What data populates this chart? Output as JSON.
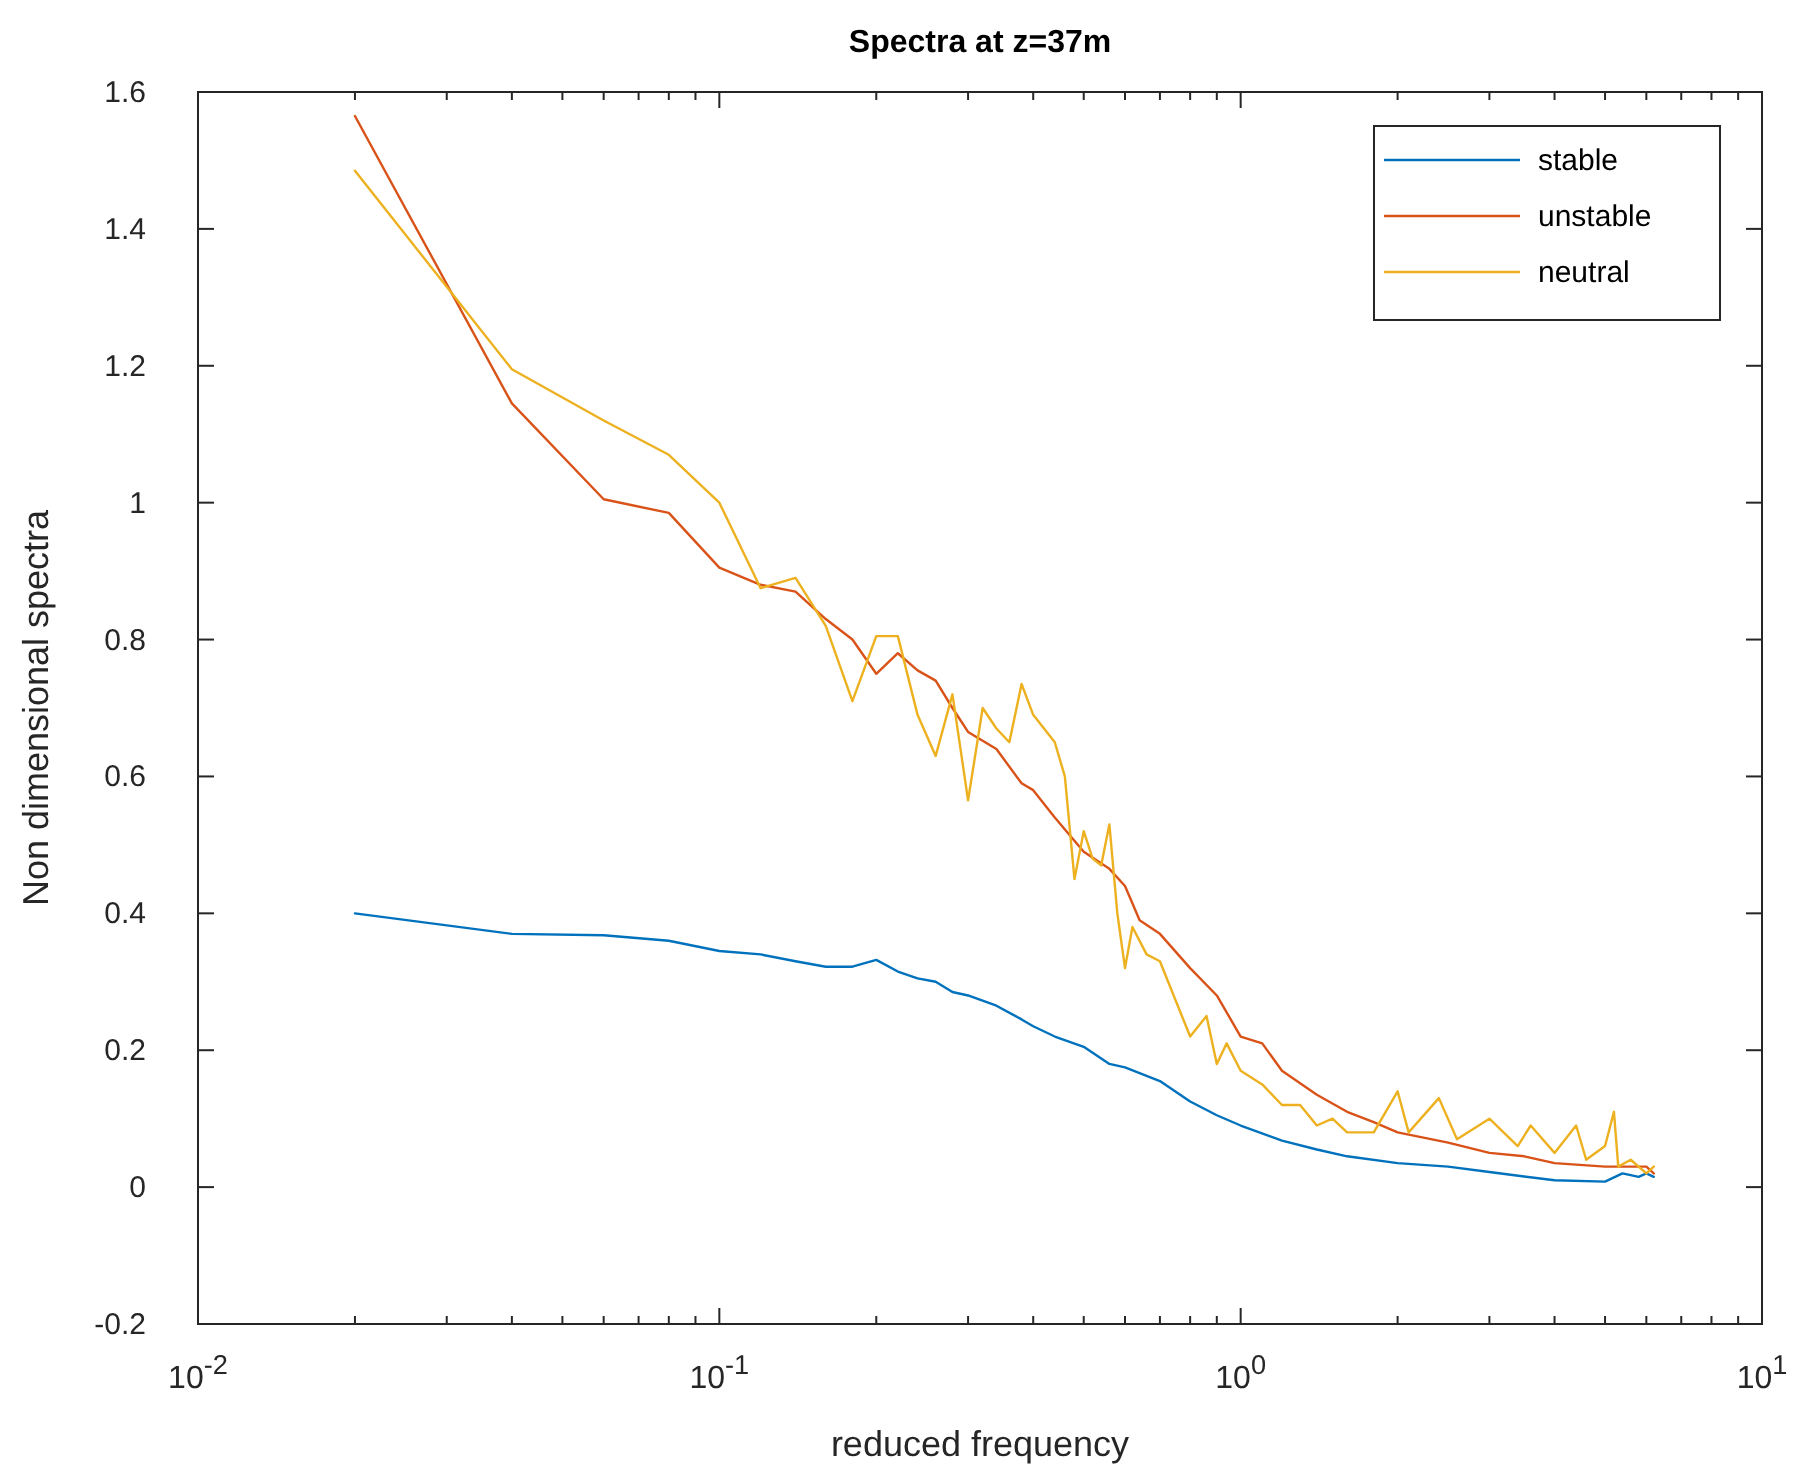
{
  "chart_data": {
    "type": "line",
    "title": "Spectra at z=37m",
    "xlabel": "reduced frequency",
    "ylabel": "Non dimensional spectra",
    "log": "x",
    "legend": "top right",
    "grid": false,
    "marker": "none",
    "line_style": "solid",
    "xlim": [
      0.01,
      10
    ],
    "ylim": [
      -0.2,
      1.6
    ],
    "xticks": [
      {
        "value": 0.01,
        "label": "10$^{-2}$"
      },
      {
        "value": 0.02,
        "label": null
      },
      {
        "value": 0.03,
        "label": null
      },
      {
        "value": 0.04,
        "label": null
      },
      {
        "value": 0.05,
        "label": null
      },
      {
        "value": 0.06,
        "label": null
      },
      {
        "value": 0.07,
        "label": null
      },
      {
        "value": 0.08,
        "label": null
      },
      {
        "value": 0.09,
        "label": null
      },
      {
        "value": 0.1,
        "label": "10$^{-1}$"
      },
      {
        "value": 0.2,
        "label": null
      },
      {
        "value": 0.3,
        "label": null
      },
      {
        "value": 0.4,
        "label": null
      },
      {
        "value": 0.5,
        "label": null
      },
      {
        "value": 0.6,
        "label": null
      },
      {
        "value": 0.7,
        "label": null
      },
      {
        "value": 0.8,
        "label": null
      },
      {
        "value": 0.9,
        "label": null
      },
      {
        "value": 1,
        "label": "10$^{0}$"
      },
      {
        "value": 2,
        "label": null
      },
      {
        "value": 3,
        "label": null
      },
      {
        "value": 4,
        "label": null
      },
      {
        "value": 5,
        "label": null
      },
      {
        "value": 6,
        "label": null
      },
      {
        "value": 7,
        "label": null
      },
      {
        "value": 8,
        "label": null
      },
      {
        "value": 9,
        "label": null
      },
      {
        "value": 10,
        "label": "10$^{1}$"
      }
    ],
    "yticks": [
      -0.2,
      0,
      0.2,
      0.4,
      0.6,
      0.8,
      1,
      1.2,
      1.4,
      1.6
    ],
    "series": [
      {
        "name": "stable",
        "color": "#0072bd",
        "x": [
          0.02,
          0.04,
          0.06,
          0.08,
          0.1,
          0.12,
          0.14,
          0.16,
          0.18,
          0.2,
          0.22,
          0.24,
          0.26,
          0.28,
          0.3,
          0.34,
          0.38,
          0.4,
          0.44,
          0.5,
          0.56,
          0.6,
          0.7,
          0.8,
          0.9,
          1.0,
          1.2,
          1.4,
          1.6,
          2.0,
          2.5,
          3.0,
          4.0,
          5.0,
          5.4,
          5.8,
          6.0,
          6.2
        ],
        "values": [
          0.4,
          0.37,
          0.368,
          0.36,
          0.345,
          0.34,
          0.33,
          0.322,
          0.322,
          0.332,
          0.315,
          0.305,
          0.3,
          0.285,
          0.28,
          0.265,
          0.245,
          0.235,
          0.22,
          0.205,
          0.18,
          0.175,
          0.155,
          0.125,
          0.105,
          0.09,
          0.068,
          0.055,
          0.045,
          0.035,
          0.03,
          0.022,
          0.01,
          0.008,
          0.02,
          0.015,
          0.02,
          0.015
        ]
      },
      {
        "name": "unstable",
        "color": "#d95319",
        "x": [
          0.02,
          0.04,
          0.06,
          0.08,
          0.1,
          0.12,
          0.14,
          0.16,
          0.18,
          0.2,
          0.22,
          0.24,
          0.26,
          0.28,
          0.3,
          0.34,
          0.38,
          0.4,
          0.44,
          0.5,
          0.56,
          0.6,
          0.64,
          0.7,
          0.8,
          0.9,
          1.0,
          1.1,
          1.2,
          1.4,
          1.6,
          1.8,
          2.0,
          2.5,
          3.0,
          3.5,
          4.0,
          5.0,
          5.6,
          6.0,
          6.2
        ],
        "values": [
          1.565,
          1.145,
          1.005,
          0.985,
          0.905,
          0.88,
          0.87,
          0.83,
          0.8,
          0.75,
          0.78,
          0.755,
          0.74,
          0.7,
          0.665,
          0.64,
          0.59,
          0.58,
          0.54,
          0.49,
          0.465,
          0.44,
          0.39,
          0.37,
          0.32,
          0.28,
          0.22,
          0.21,
          0.17,
          0.135,
          0.11,
          0.095,
          0.08,
          0.065,
          0.05,
          0.045,
          0.035,
          0.03,
          0.03,
          0.03,
          0.02
        ]
      },
      {
        "name": "neutral",
        "color": "#edb120",
        "x": [
          0.02,
          0.04,
          0.06,
          0.08,
          0.1,
          0.12,
          0.14,
          0.16,
          0.18,
          0.2,
          0.22,
          0.24,
          0.26,
          0.28,
          0.3,
          0.32,
          0.34,
          0.36,
          0.38,
          0.4,
          0.44,
          0.46,
          0.48,
          0.5,
          0.52,
          0.54,
          0.56,
          0.58,
          0.6,
          0.62,
          0.66,
          0.7,
          0.8,
          0.86,
          0.9,
          0.94,
          1.0,
          1.1,
          1.2,
          1.3,
          1.4,
          1.5,
          1.6,
          1.8,
          2.0,
          2.1,
          2.4,
          2.6,
          3.0,
          3.4,
          3.6,
          4.0,
          4.4,
          4.6,
          5.0,
          5.2,
          5.3,
          5.6,
          6.0,
          6.2
        ],
        "values": [
          1.485,
          1.195,
          1.12,
          1.07,
          1.0,
          0.875,
          0.89,
          0.82,
          0.71,
          0.805,
          0.805,
          0.69,
          0.63,
          0.72,
          0.565,
          0.7,
          0.67,
          0.65,
          0.735,
          0.69,
          0.65,
          0.6,
          0.45,
          0.52,
          0.48,
          0.47,
          0.53,
          0.4,
          0.32,
          0.38,
          0.34,
          0.33,
          0.22,
          0.25,
          0.18,
          0.21,
          0.17,
          0.15,
          0.12,
          0.12,
          0.09,
          0.1,
          0.08,
          0.08,
          0.14,
          0.08,
          0.13,
          0.07,
          0.1,
          0.06,
          0.09,
          0.05,
          0.09,
          0.04,
          0.06,
          0.11,
          0.03,
          0.04,
          0.02,
          0.03
        ]
      }
    ]
  }
}
